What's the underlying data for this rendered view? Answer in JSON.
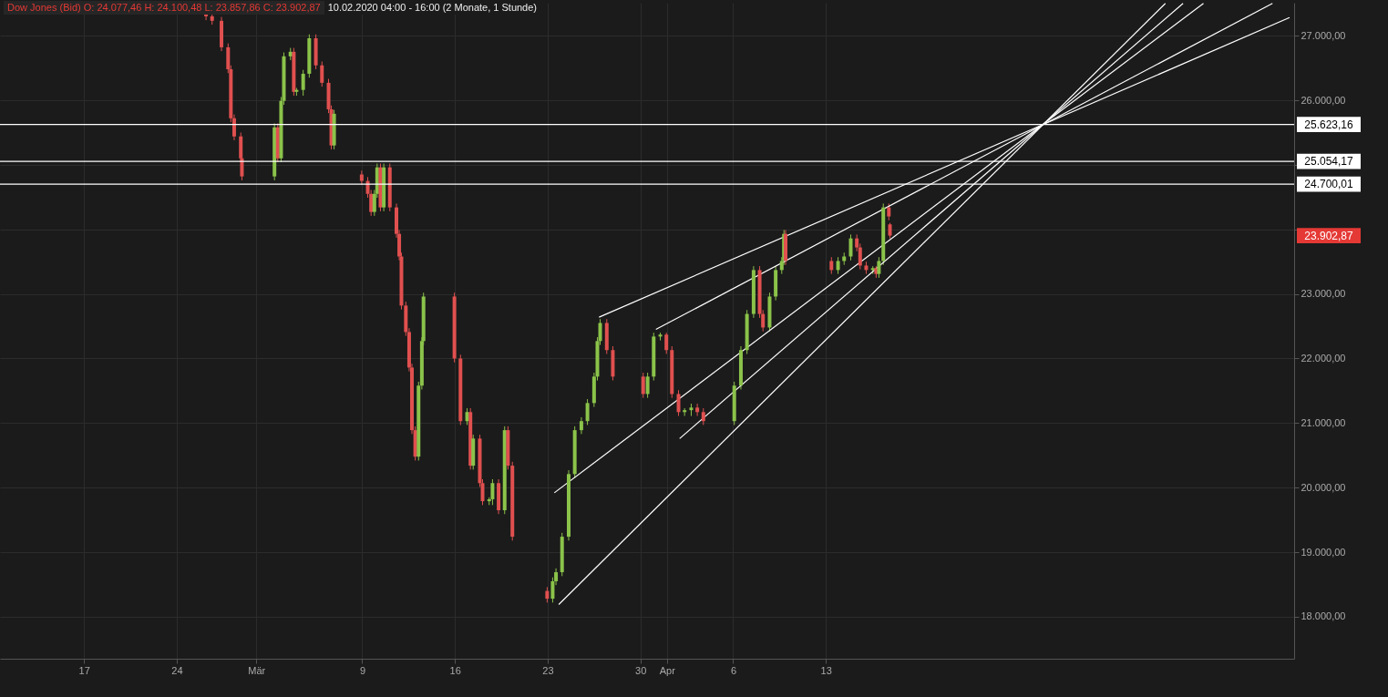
{
  "chart_data": {
    "type": "candlestick",
    "title": "Dow Jones (Bid)  O: 24.077,46  H: 24.100,48  L: 23.857,86  C: 23.902,87",
    "subtitle": "10.02.2020 04:00 - 16:00   (2 Monate, 1 Stunde)",
    "x": [
      "2020-02-26T05:00",
      "2020-02-26T16:00",
      "2020-02-27T09:00",
      "2020-02-27T21:00",
      "2020-02-28T02:00",
      "2020-02-28T08:00",
      "2020-02-28T20:00",
      "2020-02-28T22:00",
      "2020-03-02T09:00",
      "2020-03-02T15:00",
      "2020-03-02T21:00",
      "2020-03-03T02:00",
      "2020-03-03T14:00",
      "2020-03-03T20:00",
      "2020-03-04T01:00",
      "2020-03-04T13:00",
      "2020-03-05T00:00",
      "2020-03-05T12:00",
      "2020-03-05T23:00",
      "2020-03-06T11:00",
      "2020-03-06T16:00",
      "2020-03-06T21:00",
      "2020-03-08T23:00",
      "2020-03-09T10:00",
      "2020-03-09T16:00",
      "2020-03-09T22:00",
      "2020-03-10T03:00",
      "2020-03-10T09:00",
      "2020-03-10T15:00",
      "2020-03-11T02:00",
      "2020-03-11T14:00",
      "2020-03-11T19:00",
      "2020-03-11T23:00",
      "2020-03-12T07:00",
      "2020-03-12T13:00",
      "2020-03-12T18:00",
      "2020-03-13T00:00",
      "2020-03-13T06:00",
      "2020-03-13T12:00",
      "2020-03-13T15:00",
      "2020-03-15T23:00",
      "2020-03-16T10:00",
      "2020-03-16T22:00",
      "2020-03-17T04:00",
      "2020-03-17T09:00",
      "2020-03-17T21:00",
      "2020-03-18T02:00",
      "2020-03-18T14:00",
      "2020-03-18T20:00",
      "2020-03-19T07:00",
      "2020-03-19T18:00",
      "2020-03-20T00:00",
      "2020-03-20T08:00",
      "2020-03-22T23:00",
      "2020-03-23T09:00",
      "2020-03-23T15:00",
      "2020-03-24T02:00",
      "2020-03-24T14:00",
      "2020-03-25T01:00",
      "2020-03-25T13:00",
      "2020-03-26T00:00",
      "2020-03-26T12:00",
      "2020-03-26T18:00",
      "2020-03-26T23:00",
      "2020-03-27T11:00",
      "2020-03-27T22:00",
      "2020-03-30T05:00",
      "2020-03-30T13:00",
      "2020-03-31T00:00",
      "2020-03-31T12:00",
      "2020-03-31T23:00",
      "2020-04-01T09:00",
      "2020-04-01T21:00",
      "2020-04-02T08:00",
      "2020-04-02T20:00",
      "2020-04-03T07:00",
      "2020-04-03T18:00",
      "2020-04-06T02:00",
      "2020-04-06T14:00",
      "2020-04-07T01:00",
      "2020-04-07T13:00",
      "2020-04-08T00:00",
      "2020-04-08T06:00",
      "2020-04-08T18:00",
      "2020-04-09T05:00",
      "2020-04-09T16:00",
      "2020-04-09T20:00",
      "2020-04-09T23:00",
      "2020-04-13T10:00",
      "2020-04-13T22:00",
      "2020-04-14T09:00",
      "2020-04-14T21:00",
      "2020-04-15T08:00",
      "2020-04-15T14:00",
      "2020-04-16T01:00",
      "2020-04-16T13:00",
      "2020-04-16T19:00",
      "2020-04-17T00:00",
      "2020-04-17T08:00",
      "2020-04-17T18:00",
      "2020-04-17T20:00"
    ],
    "ohlc": [
      [
        27350,
        27410,
        27240,
        27300
      ],
      [
        27300,
        27360,
        27170,
        27230
      ],
      [
        27230,
        27290,
        26760,
        26820
      ],
      [
        26820,
        26880,
        26420,
        26480
      ],
      [
        26480,
        26540,
        25660,
        25720
      ],
      [
        25720,
        25780,
        25380,
        25440
      ],
      [
        25440,
        25500,
        25040,
        25100
      ],
      [
        25100,
        25160,
        24760,
        24820
      ],
      [
        24820,
        25640,
        24760,
        25580
      ],
      [
        25580,
        25640,
        25040,
        25100
      ],
      [
        25100,
        26050,
        25040,
        25990
      ],
      [
        25990,
        26740,
        25930,
        26680
      ],
      [
        26680,
        26810,
        26620,
        26750
      ],
      [
        26750,
        26810,
        26070,
        26130
      ],
      [
        26130,
        26190,
        26070,
        26160
      ],
      [
        26160,
        26470,
        26070,
        26410
      ],
      [
        26410,
        27020,
        26350,
        26960
      ],
      [
        26960,
        27020,
        26480,
        26540
      ],
      [
        26540,
        26600,
        26210,
        26270
      ],
      [
        26270,
        26330,
        25800,
        25860
      ],
      [
        25860,
        25920,
        25240,
        25300
      ],
      [
        25300,
        25850,
        25240,
        25790
      ],
      [
        24850,
        24910,
        24690,
        24750
      ],
      [
        24750,
        24810,
        24490,
        24550
      ],
      [
        24550,
        24610,
        24210,
        24270
      ],
      [
        24270,
        24610,
        24210,
        24550
      ],
      [
        24550,
        25020,
        24490,
        24960
      ],
      [
        24960,
        25020,
        24280,
        24340
      ],
      [
        24340,
        25020,
        24280,
        24960
      ],
      [
        24960,
        25020,
        24280,
        24340
      ],
      [
        24340,
        24400,
        23870,
        23930
      ],
      [
        23930,
        23990,
        23520,
        23580
      ],
      [
        23580,
        23640,
        22760,
        22820
      ],
      [
        22820,
        22880,
        22350,
        22410
      ],
      [
        22410,
        22470,
        21800,
        21860
      ],
      [
        21860,
        21920,
        20830,
        20890
      ],
      [
        20890,
        20950,
        20420,
        20480
      ],
      [
        20480,
        21640,
        20420,
        21580
      ],
      [
        21580,
        22330,
        21520,
        22270
      ],
      [
        22270,
        23020,
        22210,
        22960
      ],
      [
        22960,
        23020,
        21940,
        22000
      ],
      [
        22000,
        22060,
        20970,
        21030
      ],
      [
        21030,
        21230,
        20970,
        21170
      ],
      [
        21170,
        21230,
        20280,
        20340
      ],
      [
        20340,
        20820,
        20280,
        20760
      ],
      [
        20760,
        20820,
        20010,
        20070
      ],
      [
        20070,
        20130,
        19730,
        19790
      ],
      [
        19790,
        19850,
        19730,
        19820
      ],
      [
        19820,
        20130,
        19730,
        20070
      ],
      [
        20070,
        20130,
        19590,
        19650
      ],
      [
        19650,
        20950,
        19590,
        20890
      ],
      [
        20890,
        20950,
        20280,
        20340
      ],
      [
        20340,
        20400,
        19180,
        19240
      ],
      [
        18400,
        18460,
        18220,
        18280
      ],
      [
        18280,
        18610,
        18220,
        18550
      ],
      [
        18550,
        18750,
        18490,
        18690
      ],
      [
        18690,
        19300,
        18630,
        19240
      ],
      [
        19240,
        20270,
        19180,
        20210
      ],
      [
        20210,
        20950,
        20150,
        20890
      ],
      [
        20890,
        21090,
        20830,
        21030
      ],
      [
        21030,
        21370,
        20970,
        21310
      ],
      [
        21310,
        21780,
        21250,
        21720
      ],
      [
        21720,
        22330,
        21660,
        22270
      ],
      [
        22270,
        22610,
        22210,
        22550
      ],
      [
        22550,
        22610,
        22070,
        22130
      ],
      [
        22130,
        22190,
        21660,
        21720
      ],
      [
        21720,
        21780,
        21390,
        21450
      ],
      [
        21450,
        21780,
        21390,
        21720
      ],
      [
        21720,
        22400,
        21660,
        22340
      ],
      [
        22340,
        22400,
        22280,
        22370
      ],
      [
        22370,
        22400,
        22070,
        22130
      ],
      [
        22130,
        22190,
        21390,
        21450
      ],
      [
        21450,
        21510,
        21110,
        21170
      ],
      [
        21170,
        21230,
        21110,
        21200
      ],
      [
        21200,
        21300,
        21110,
        21240
      ],
      [
        21240,
        21300,
        21110,
        21170
      ],
      [
        21170,
        21230,
        20970,
        21030
      ],
      [
        21030,
        21640,
        20970,
        21580
      ],
      [
        21580,
        22190,
        21520,
        22130
      ],
      [
        22130,
        22750,
        22070,
        22690
      ],
      [
        22690,
        23430,
        22630,
        23370
      ],
      [
        23370,
        23430,
        22630,
        22690
      ],
      [
        22690,
        22750,
        22420,
        22480
      ],
      [
        22480,
        23020,
        22420,
        22960
      ],
      [
        22960,
        23430,
        22900,
        23370
      ],
      [
        23370,
        23570,
        23310,
        23510
      ],
      [
        23510,
        23990,
        23450,
        23930
      ],
      [
        23930,
        23990,
        23450,
        23510
      ],
      [
        23510,
        23570,
        23310,
        23370
      ],
      [
        23370,
        23570,
        23310,
        23510
      ],
      [
        23510,
        23640,
        23450,
        23580
      ],
      [
        23580,
        23920,
        23520,
        23860
      ],
      [
        23860,
        23920,
        23660,
        23720
      ],
      [
        23720,
        23780,
        23380,
        23440
      ],
      [
        23440,
        23500,
        23310,
        23370
      ],
      [
        23370,
        23430,
        23310,
        23400
      ],
      [
        23400,
        23430,
        23250,
        23310
      ],
      [
        23310,
        23570,
        23250,
        23510
      ],
      [
        23510,
        24400,
        23450,
        24340
      ],
      [
        24340,
        24400,
        24140,
        24200
      ],
      [
        24077.46,
        24100.48,
        23857.86,
        23902.87
      ]
    ],
    "series": [
      {
        "type": "line",
        "color": "#ffffff",
        "x": [
          "2020-03-26T21:00",
          "2020-05-18T00:00"
        ],
        "values": [
          22640,
          27280
        ]
      },
      {
        "type": "line",
        "color": "#ffffff",
        "x": [
          "2020-03-31T04:00",
          "2020-05-16T17:00"
        ],
        "values": [
          22450,
          27500
        ]
      },
      {
        "type": "line",
        "color": "#ffffff",
        "x": [
          "2020-03-23T12:00",
          "2020-05-11T12:00"
        ],
        "values": [
          19920,
          27500
        ]
      },
      {
        "type": "line",
        "color": "#ffffff",
        "x": [
          "2020-04-01T23:00",
          "2020-05-09T23:00"
        ],
        "values": [
          20760,
          27500
        ]
      },
      {
        "type": "line",
        "color": "#ffffff",
        "x": [
          "2020-03-23T20:00",
          "2020-05-08T15:00"
        ],
        "values": [
          18190,
          27500
        ]
      }
    ],
    "ref_lines": [
      {
        "axis": "y",
        "value": 25623.16,
        "label": "25.623,16",
        "color": "#ffffff"
      },
      {
        "axis": "y",
        "value": 25054.17,
        "label": "25.054,17",
        "color": "#ffffff"
      },
      {
        "axis": "y",
        "value": 24700.01,
        "label": "24.700,01",
        "color": "#ffffff"
      }
    ],
    "annotations": [
      "23.902,87"
    ],
    "xlim": [
      "2020-02-11T00:00",
      "2020-05-18T00:00"
    ],
    "xticks": [
      {
        "value": "2020-02-17",
        "label": "17"
      },
      {
        "value": "2020-02-24",
        "label": "24"
      },
      {
        "value": "2020-03-01",
        "label": "Mär"
      },
      {
        "value": "2020-03-09",
        "label": "9"
      },
      {
        "value": "2020-03-16",
        "label": "16"
      },
      {
        "value": "2020-03-23",
        "label": "23"
      },
      {
        "value": "2020-03-30",
        "label": "30"
      },
      {
        "value": "2020-04-01",
        "label": "Apr"
      },
      {
        "value": "2020-04-06",
        "label": "6"
      },
      {
        "value": "2020-04-13",
        "label": "13"
      }
    ],
    "ylim": [
      17350,
      27510
    ],
    "yticks": [
      {
        "value": 18000,
        "label": "18.000,00"
      },
      {
        "value": 19000,
        "label": "19.000,00"
      },
      {
        "value": 20000,
        "label": "20.000,00"
      },
      {
        "value": 21000,
        "label": "21.000,00"
      },
      {
        "value": 22000,
        "label": "22.000,00"
      },
      {
        "value": 23000,
        "label": "23.000,00"
      },
      {
        "value": 24000,
        "label": null
      },
      {
        "value": 25000,
        "label": null
      },
      {
        "value": 26000,
        "label": "26.000,00"
      },
      {
        "value": 27000,
        "label": "27.000,00"
      }
    ],
    "grid": true
  }
}
